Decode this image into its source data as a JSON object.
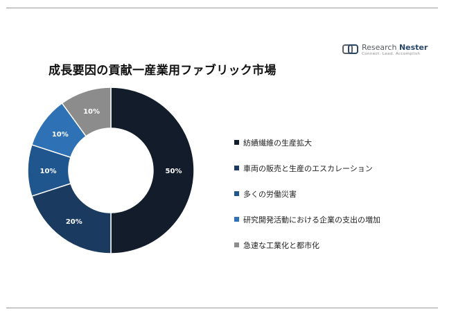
{
  "title": "成長要因の貢献一産業用ファブリック市場",
  "logo": {
    "name_light": "Research ",
    "name_bold": "Nester",
    "tagline": "Connect. Lead. Accomplish"
  },
  "colors": [
    "#131c2b",
    "#1b3a5f",
    "#20568e",
    "#2e71b5",
    "#8c8c8c"
  ],
  "chart_data": {
    "type": "donut",
    "title": "成長要因の貢献一産業用ファブリック市場",
    "unit": "%",
    "slices": [
      {
        "label": "紡績繊維の生産拡大",
        "value": 50,
        "data_label": "50%"
      },
      {
        "label": "車両の販売と生産のエスカレーション",
        "value": 20,
        "data_label": "20%"
      },
      {
        "label": "多くの労働災害",
        "value": 10,
        "data_label": "10%"
      },
      {
        "label": "研究開発活動における企業の支出の増加",
        "value": 10,
        "data_label": "10%"
      },
      {
        "label": "急速な工業化と都市化",
        "value": 10,
        "data_label": "10%"
      }
    ],
    "legend_position": "right"
  }
}
